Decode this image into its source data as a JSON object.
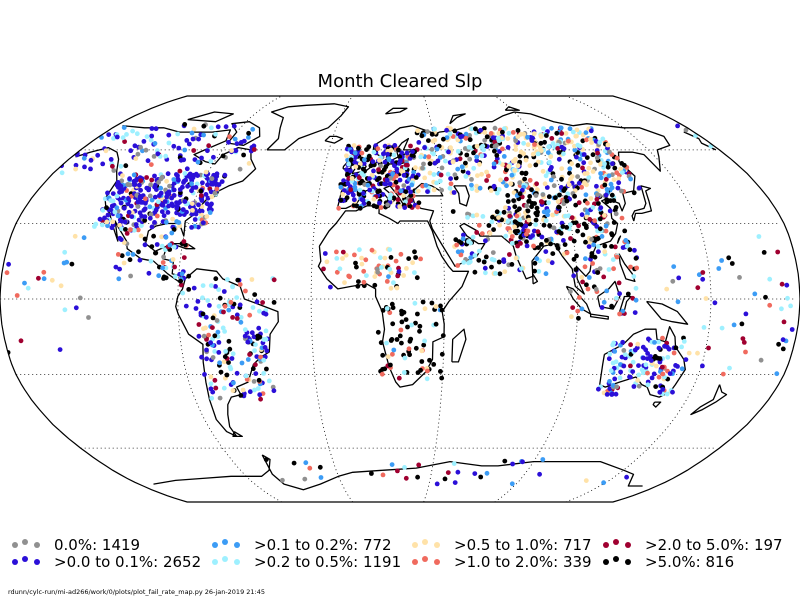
{
  "title": "Month Cleared Slp",
  "legend": [
    {
      "label": "0.0%: 1419",
      "color": "#909090"
    },
    {
      "label": ">0.0 to 0.1%: 2652",
      "color": "#2b0fd8"
    },
    {
      "label": ">0.1 to 0.2%: 772",
      "color": "#3c9cf5"
    },
    {
      "label": ">0.2 to 0.5%: 1191",
      "color": "#9ef0ff"
    },
    {
      "label": ">0.5 to 1.0%: 717",
      "color": "#ffe2a8"
    },
    {
      "label": ">1.0 to 2.0%: 339",
      "color": "#f06a5e"
    },
    {
      "label": ">2.0 to 5.0%: 197",
      "color": "#a00030"
    },
    {
      "label": ">5.0%: 816",
      "color": "#000000"
    }
  ],
  "footer": "rdunn/cylc-run/mi-ad266/work/0/plots/plot_fail_rate_map.py   26-jan-2019 21:45"
}
